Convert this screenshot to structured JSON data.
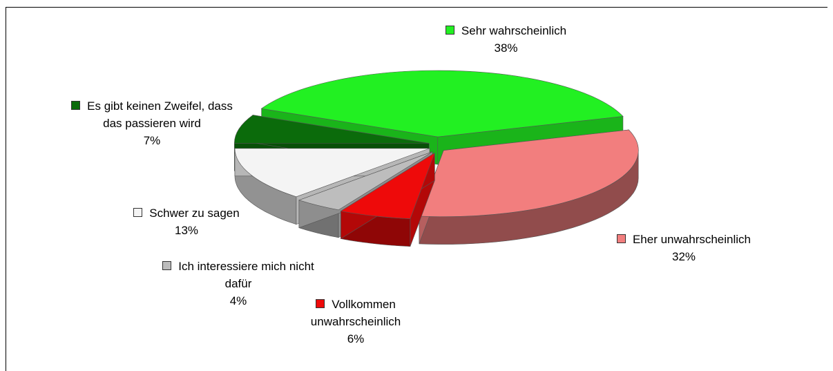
{
  "chart_data": {
    "type": "pie3d",
    "categories": [
      "Es gibt keinen Zweifel, dass das passieren wird",
      "Sehr wahrscheinlich",
      "Eher unwahrscheinlich",
      "Vollkommen unwahrscheinlich",
      "Ich interessiere mich nicht dafür",
      "Schwer zu sagen"
    ],
    "values": [
      7,
      38,
      32,
      6,
      4,
      13
    ],
    "value_labels": [
      "7%",
      "38%",
      "32%",
      "6%",
      "4%",
      "13%"
    ],
    "colors": [
      "#0b6b0b",
      "#22f022",
      "#f27e7e",
      "#ee0a0a",
      "#bdbdbd",
      "#f4f4f4"
    ]
  }
}
